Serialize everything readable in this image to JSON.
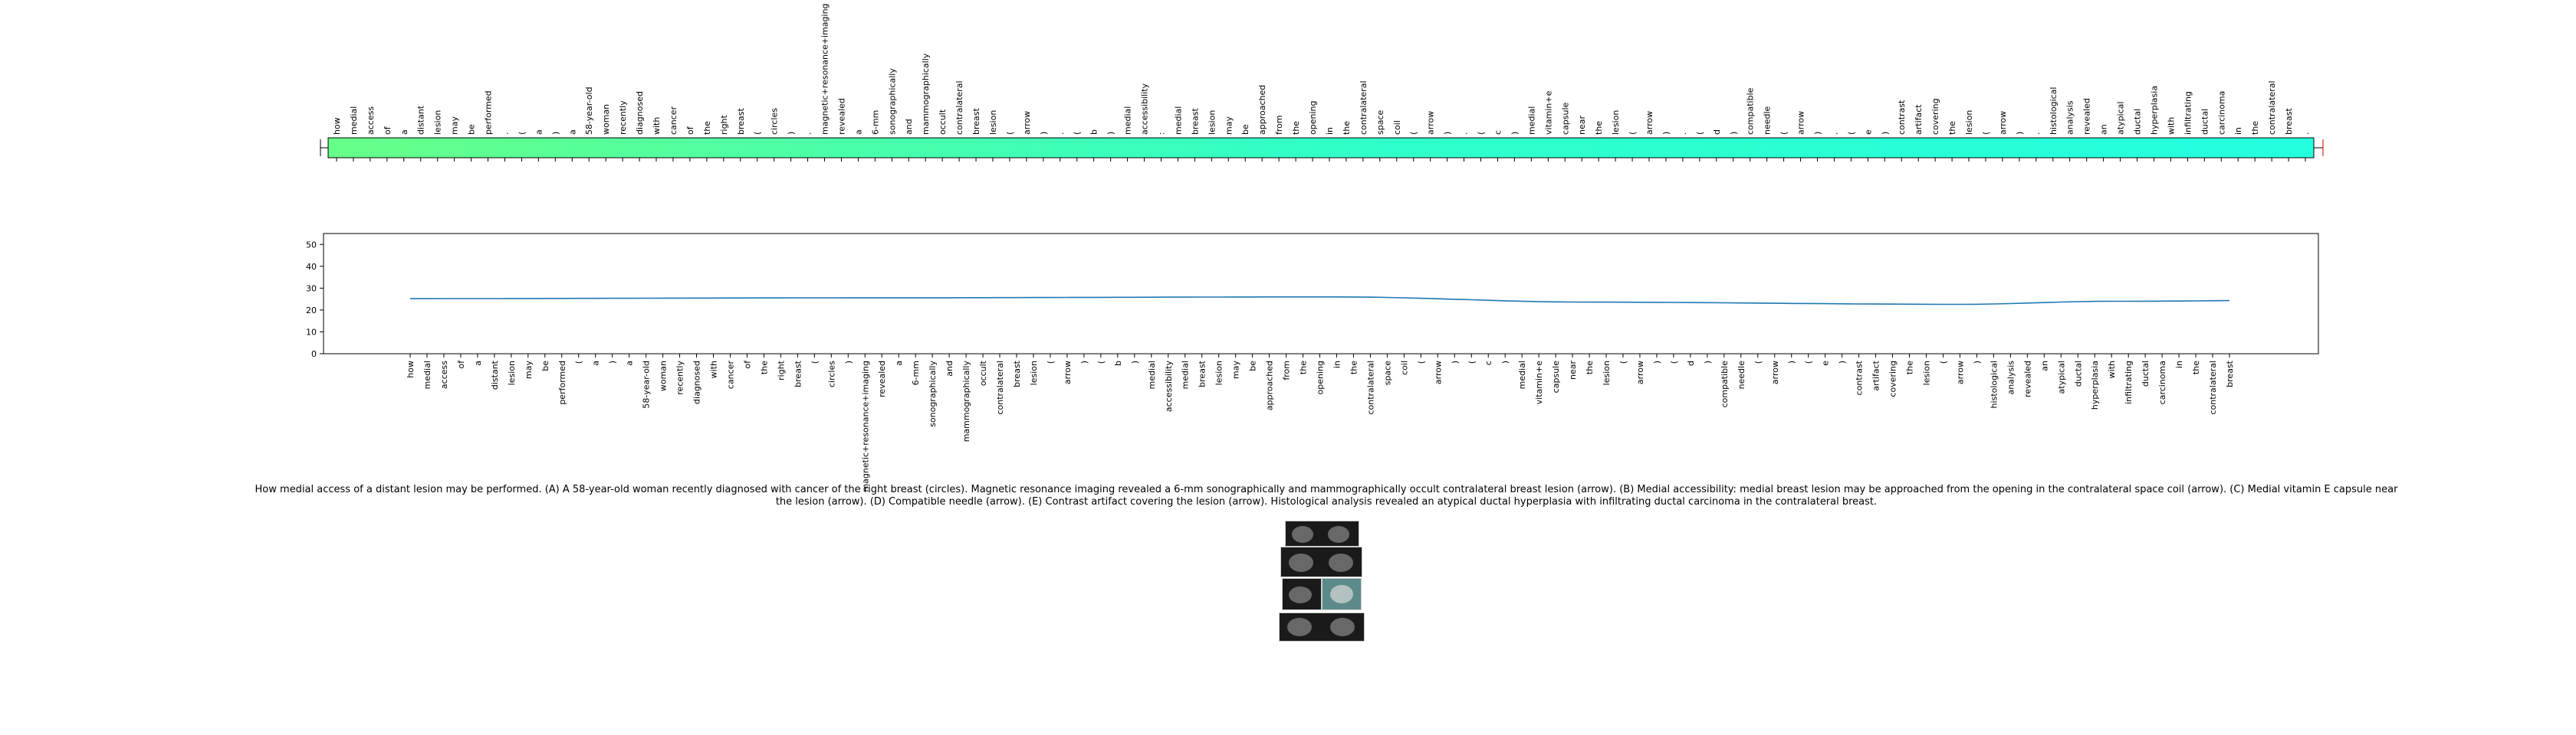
{
  "figure": {
    "caption": "How medial access of a distant lesion may be performed. (A) A 58-year-old woman recently diagnosed with cancer of the right breast (circles). Magnetic resonance imaging revealed a 6-mm sonographically and mammographically occult contralateral breast lesion (arrow). (B) Medial accessibility: medial breast lesion may be approached from the opening in the contralateral space coil (arrow). (C) Medial vitamin E capsule near the lesion (arrow). (D) Compatible needle (arrow). (E) Contrast artifact covering the lesion (arrow). Histological analysis revealed an atypical ductal hyperplasia with infiltrating ductal carcinoma in the contralateral breast."
  },
  "chart_data": [
    {
      "type": "heatmap",
      "tokens": [
        "how",
        "medial",
        "access",
        "of",
        "a",
        "distant",
        "lesion",
        "may",
        "be",
        "performed",
        ".",
        "(",
        "a",
        ")",
        "a",
        "58-year-old",
        "woman",
        "recently",
        "diagnosed",
        "with",
        "cancer",
        "of",
        "the",
        "right",
        "breast",
        "(",
        "circles",
        ")",
        ".",
        "magnetic+resonance+imaging",
        "revealed",
        "a",
        "6-mm",
        "sonographically",
        "and",
        "mammographically",
        "occult",
        "contralateral",
        "breast",
        "lesion",
        "(",
        "arrow",
        ")",
        ".",
        "(",
        "b",
        ")",
        "medial",
        "accessibility",
        ":",
        "medial",
        "breast",
        "lesion",
        "may",
        "be",
        "approached",
        "from",
        "the",
        "opening",
        "in",
        "the",
        "contralateral",
        "space",
        "coil",
        "(",
        "arrow",
        ")",
        ".",
        "(",
        "c",
        ")",
        "medial",
        "vitamin+e",
        "capsule",
        "near",
        "the",
        "lesion",
        "(",
        "arrow",
        ")",
        ".",
        "(",
        "d",
        ")",
        "compatible",
        "needle",
        "(",
        "arrow",
        ")",
        ".",
        "(",
        "e",
        ")",
        "contrast",
        "artifact",
        "covering",
        "the",
        "lesion",
        "(",
        "arrow",
        ")",
        ".",
        "histological",
        "analysis",
        "revealed",
        "an",
        "atypical",
        "ductal",
        "hyperplasia",
        "with",
        "infiltrating",
        "ductal",
        "carcinoma",
        "in",
        "the",
        "contralateral",
        "breast",
        "."
      ],
      "colors": [
        "#66ff88",
        "#30ffc8",
        "#24ffe0"
      ]
    },
    {
      "type": "line",
      "x_labels": [
        "how",
        "medial",
        "access",
        "of",
        "a",
        "distant",
        "lesion",
        "may",
        "be",
        "performed",
        "(",
        "a",
        ")",
        "a",
        "58-year-old",
        "woman",
        "recently",
        "diagnosed",
        "with",
        "cancer",
        "of",
        "the",
        "right",
        "breast",
        "(",
        "circles",
        ")",
        "magnetic+resonance+imaging",
        "revealed",
        "a",
        "6-mm",
        "sonographically",
        "and",
        "mammographically",
        "occult",
        "contralateral",
        "breast",
        "lesion",
        "(",
        "arrow",
        ")",
        "(",
        "b",
        ")",
        "medial",
        "accessibility",
        "medial",
        "breast",
        "lesion",
        "may",
        "be",
        "approached",
        "from",
        "the",
        "opening",
        "in",
        "the",
        "contralateral",
        "space",
        "coil",
        "(",
        "arrow",
        ")",
        "(",
        "c",
        ")",
        "medial",
        "vitamin+e",
        "capsule",
        "near",
        "the",
        "lesion",
        "(",
        "arrow",
        ")",
        "(",
        "d",
        ")",
        "compatible",
        "needle",
        "(",
        "arrow",
        ")",
        "(",
        "e",
        ")",
        "contrast",
        "artifact",
        "covering",
        "the",
        "lesion",
        "(",
        "arrow",
        ")",
        "histological",
        "analysis",
        "revealed",
        "an",
        "atypical",
        "ductal",
        "hyperplasia",
        "with",
        "infiltrating",
        "ductal",
        "carcinoma",
        "in",
        "the",
        "contralateral",
        "breast"
      ],
      "y_keypoints": [
        [
          0,
          25.2
        ],
        [
          28,
          25.6
        ],
        [
          55,
          26.0
        ],
        [
          70,
          23.6
        ],
        [
          92,
          22.6
        ],
        [
          101,
          24.0
        ],
        [
          120,
          25.0
        ],
        [
          138,
          25.4
        ],
        [
          155,
          23.6
        ],
        [
          170,
          21.8
        ]
      ],
      "ylim": [
        0,
        55
      ],
      "yticks": [
        0,
        10,
        20,
        30,
        40,
        50
      ],
      "line_color": "#1f77b4",
      "grid": false
    }
  ]
}
